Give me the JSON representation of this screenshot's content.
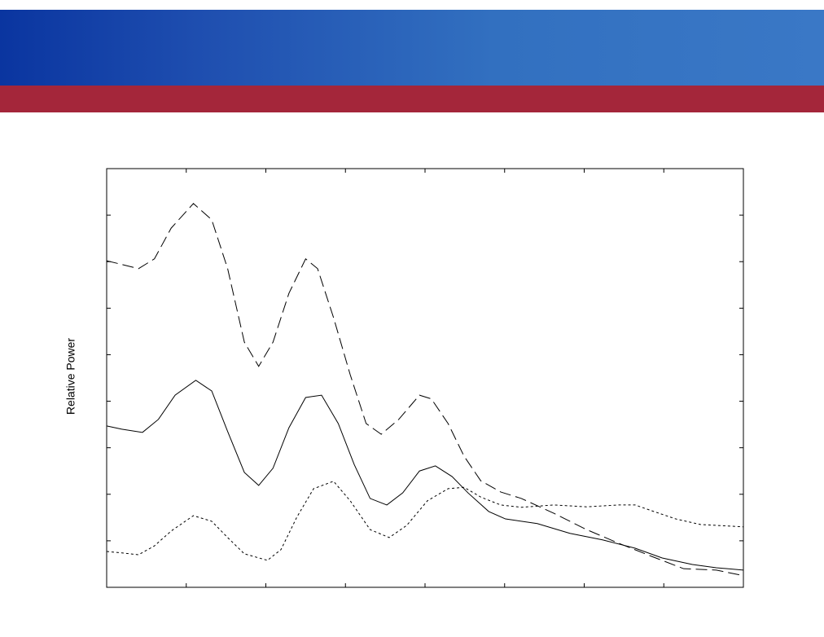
{
  "chart_data": {
    "type": "line",
    "ylabel": "Relative Power",
    "xlim": [
      0,
      8
    ],
    "xticks": [
      0,
      1,
      2,
      3,
      4,
      5,
      6,
      7,
      8
    ],
    "ylim": [
      0,
      9
    ],
    "yticks": [
      0,
      1,
      2,
      3,
      4,
      5,
      6,
      7,
      8,
      9
    ],
    "series": [
      {
        "color": "#000000",
        "dash": "long",
        "x": [
          0,
          0.19,
          0.4,
          0.6,
          0.81,
          1.09,
          1.32,
          1.52,
          1.73,
          1.91,
          2.09,
          2.29,
          2.5,
          2.65,
          2.85,
          3.06,
          3.26,
          3.45,
          3.67,
          3.93,
          4.08,
          4.29,
          4.49,
          4.7,
          4.95,
          5.21,
          5.62,
          6.03,
          6.43,
          6.84,
          7.25,
          7.66,
          8
        ],
        "values": [
          7.02,
          6.94,
          6.85,
          7.06,
          7.72,
          8.25,
          7.9,
          6.85,
          5.27,
          4.75,
          5.27,
          6.32,
          7.06,
          6.85,
          5.8,
          4.57,
          3.52,
          3.29,
          3.61,
          4.13,
          4.05,
          3.52,
          2.82,
          2.29,
          2.05,
          1.91,
          1.59,
          1.24,
          0.95,
          0.67,
          0.4,
          0.37,
          0.25
        ]
      },
      {
        "color": "#000000",
        "dash": "solid",
        "x": [
          0,
          0.19,
          0.45,
          0.65,
          0.86,
          1.12,
          1.32,
          1.52,
          1.73,
          1.91,
          2.09,
          2.29,
          2.5,
          2.7,
          2.91,
          3.11,
          3.31,
          3.52,
          3.72,
          3.93,
          4.13,
          4.34,
          4.54,
          4.8,
          5.01,
          5.41,
          5.82,
          6.23,
          6.64,
          6.98,
          7.36,
          7.66,
          8
        ],
        "values": [
          3.47,
          3.4,
          3.33,
          3.61,
          4.13,
          4.45,
          4.22,
          3.35,
          2.47,
          2.19,
          2.56,
          3.43,
          4.08,
          4.13,
          3.52,
          2.64,
          1.91,
          1.77,
          2.03,
          2.5,
          2.61,
          2.38,
          2.03,
          1.63,
          1.47,
          1.37,
          1.16,
          1.02,
          0.84,
          0.63,
          0.49,
          0.42,
          0.37
        ]
      },
      {
        "color": "#000000",
        "dash": "short",
        "x": [
          0,
          0.19,
          0.4,
          0.6,
          0.81,
          1.09,
          1.32,
          1.52,
          1.73,
          2.02,
          2.19,
          2.39,
          2.6,
          2.85,
          3.06,
          3.31,
          3.55,
          3.77,
          4.03,
          4.29,
          4.49,
          4.7,
          4.95,
          5.21,
          5.62,
          6.03,
          6.43,
          6.64,
          6.84,
          7.15,
          7.46,
          8
        ],
        "values": [
          0.77,
          0.74,
          0.7,
          0.89,
          1.21,
          1.54,
          1.42,
          1.07,
          0.72,
          0.58,
          0.81,
          1.51,
          2.12,
          2.28,
          1.86,
          1.24,
          1.07,
          1.33,
          1.86,
          2.12,
          2.15,
          1.94,
          1.77,
          1.72,
          1.77,
          1.73,
          1.77,
          1.77,
          1.65,
          1.47,
          1.35,
          1.3
        ]
      }
    ]
  }
}
